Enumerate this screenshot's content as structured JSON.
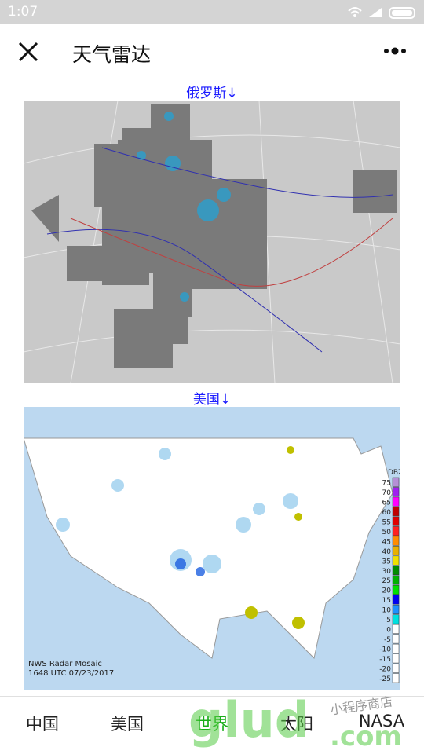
{
  "status_bar": {
    "time": "1:07"
  },
  "header": {
    "title": "天气雷达"
  },
  "sections": [
    {
      "label": "俄罗斯↓"
    },
    {
      "label": "美国↓",
      "map_caption": [
        "NWS Radar Mosaic",
        "1648 UTC 07/23/2017"
      ],
      "legend": {
        "title": "DBZ",
        "levels": [
          {
            "value": 75,
            "color": "#b58fd6"
          },
          {
            "value": 70,
            "color": "#a020f0"
          },
          {
            "value": 65,
            "color": "#ff00ff"
          },
          {
            "value": 60,
            "color": "#c00000"
          },
          {
            "value": 55,
            "color": "#e00000"
          },
          {
            "value": 50,
            "color": "#ff2020"
          },
          {
            "value": 45,
            "color": "#ff8c00"
          },
          {
            "value": 40,
            "color": "#e8b000"
          },
          {
            "value": 35,
            "color": "#f0e000"
          },
          {
            "value": 30,
            "color": "#008c00"
          },
          {
            "value": 25,
            "color": "#00b000"
          },
          {
            "value": 20,
            "color": "#00e000"
          },
          {
            "value": 15,
            "color": "#0000f0"
          },
          {
            "value": 10,
            "color": "#1e90ff"
          },
          {
            "value": 5,
            "color": "#00e0e0"
          },
          {
            "value": 0,
            "color": "#ffffff"
          },
          {
            "value": -5,
            "color": "#ffffff"
          },
          {
            "value": -10,
            "color": "#ffffff"
          },
          {
            "value": -15,
            "color": "#ffffff"
          },
          {
            "value": -20,
            "color": "#ffffff"
          },
          {
            "value": -25,
            "color": "#ffffff"
          }
        ]
      }
    }
  ],
  "tabs": {
    "items": [
      "中国",
      "美国",
      "世界",
      "太阳",
      "NASA"
    ],
    "active": 2
  },
  "watermark": {
    "logo": "glud",
    "domain": ".com",
    "tagline": "小程序商店"
  }
}
